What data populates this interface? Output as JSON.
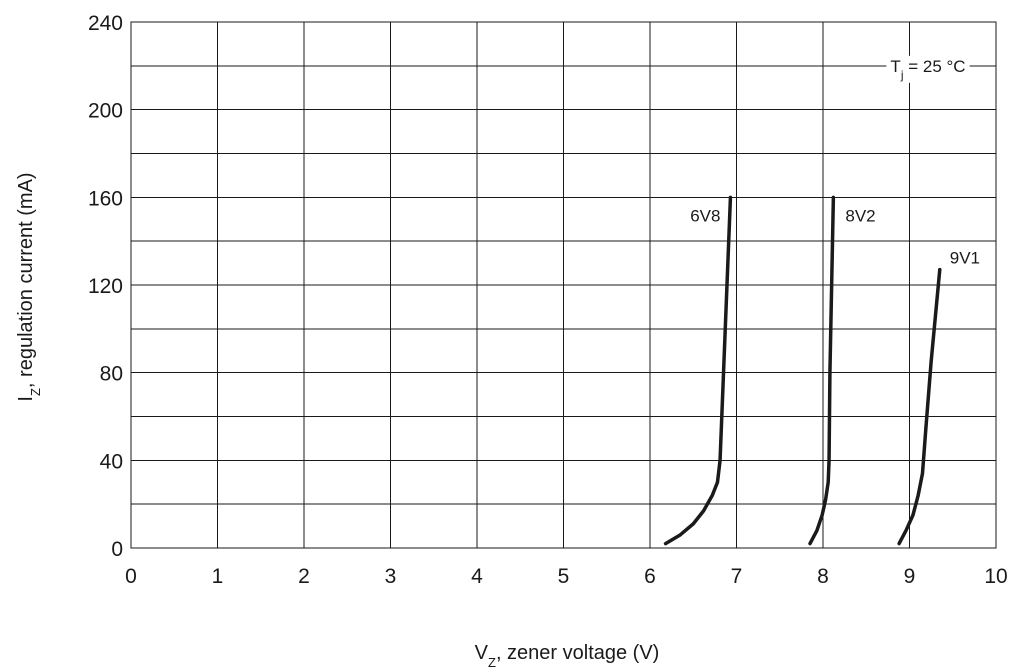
{
  "chart_data": {
    "type": "line",
    "title": "",
    "xlabel": {
      "symbol": "V",
      "sub": "Z",
      "rest": ", zener voltage (V)"
    },
    "ylabel": {
      "symbol": "I",
      "sub": "Z",
      "rest": ", regulation current (mA)"
    },
    "xlim": [
      0,
      10
    ],
    "ylim": [
      0,
      240
    ],
    "x_ticks": [
      "0",
      "1",
      "2",
      "3",
      "4",
      "5",
      "6",
      "7",
      "8",
      "9",
      "10"
    ],
    "y_ticks": [
      "0",
      "40",
      "80",
      "120",
      "160",
      "200",
      "240"
    ],
    "x_grid_step": 1,
    "y_grid_step": 20,
    "grid": true,
    "annotation": {
      "symbol": "T",
      "sub": "j",
      "rest": " = 25 °C"
    },
    "series": [
      {
        "name": "6V8",
        "points": [
          [
            6.18,
            2
          ],
          [
            6.35,
            6
          ],
          [
            6.5,
            11
          ],
          [
            6.62,
            17
          ],
          [
            6.72,
            24
          ],
          [
            6.78,
            30
          ],
          [
            6.81,
            40
          ],
          [
            6.84,
            70
          ],
          [
            6.88,
            110
          ],
          [
            6.93,
            160
          ]
        ]
      },
      {
        "name": "8V2",
        "points": [
          [
            7.85,
            2
          ],
          [
            7.93,
            8
          ],
          [
            7.99,
            15
          ],
          [
            8.03,
            22
          ],
          [
            8.06,
            30
          ],
          [
            8.07,
            40
          ],
          [
            8.08,
            80
          ],
          [
            8.1,
            120
          ],
          [
            8.12,
            160
          ]
        ]
      },
      {
        "name": "9V1",
        "points": [
          [
            8.88,
            2
          ],
          [
            8.96,
            8
          ],
          [
            9.04,
            15
          ],
          [
            9.1,
            24
          ],
          [
            9.15,
            34
          ],
          [
            9.19,
            55
          ],
          [
            9.25,
            85
          ],
          [
            9.35,
            127
          ]
        ]
      }
    ]
  }
}
